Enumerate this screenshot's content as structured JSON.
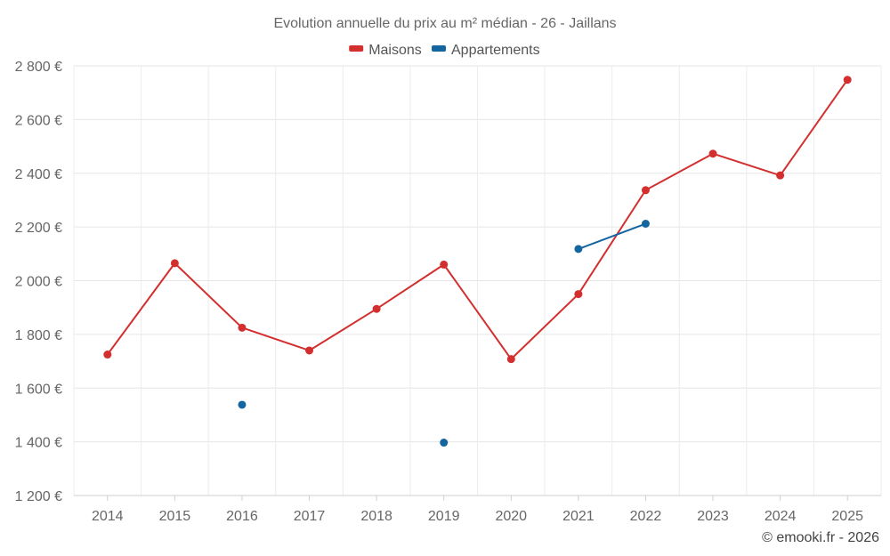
{
  "chart_data": {
    "type": "line",
    "title": "Evolution annuelle du prix au m² médian - 26 - Jaillans",
    "categories": [
      "2014",
      "2015",
      "2016",
      "2017",
      "2018",
      "2019",
      "2020",
      "2021",
      "2022",
      "2023",
      "2024",
      "2025"
    ],
    "series": [
      {
        "name": "Maisons",
        "color": "#d32f2f",
        "values": [
          1725,
          2065,
          1825,
          1740,
          1895,
          2060,
          1708,
          1950,
          2337,
          2473,
          2392,
          2748
        ]
      },
      {
        "name": "Appartements",
        "color": "#1565a0",
        "values": [
          null,
          null,
          1538,
          null,
          null,
          1397,
          null,
          2118,
          2212,
          null,
          null,
          null
        ]
      }
    ],
    "ylim": [
      1200,
      2800
    ],
    "yticks": [
      1200,
      1400,
      1600,
      1800,
      2000,
      2200,
      2400,
      2600,
      2800
    ],
    "ytick_labels": [
      "1 200 €",
      "1 400 €",
      "1 600 €",
      "1 800 €",
      "2 000 €",
      "2 200 €",
      "2 400 €",
      "2 600 €",
      "2 800 €"
    ],
    "xlabel": "",
    "ylabel": "",
    "grid": true,
    "legend_position": "top-center",
    "credit": "© emooki.fr - 2026"
  }
}
